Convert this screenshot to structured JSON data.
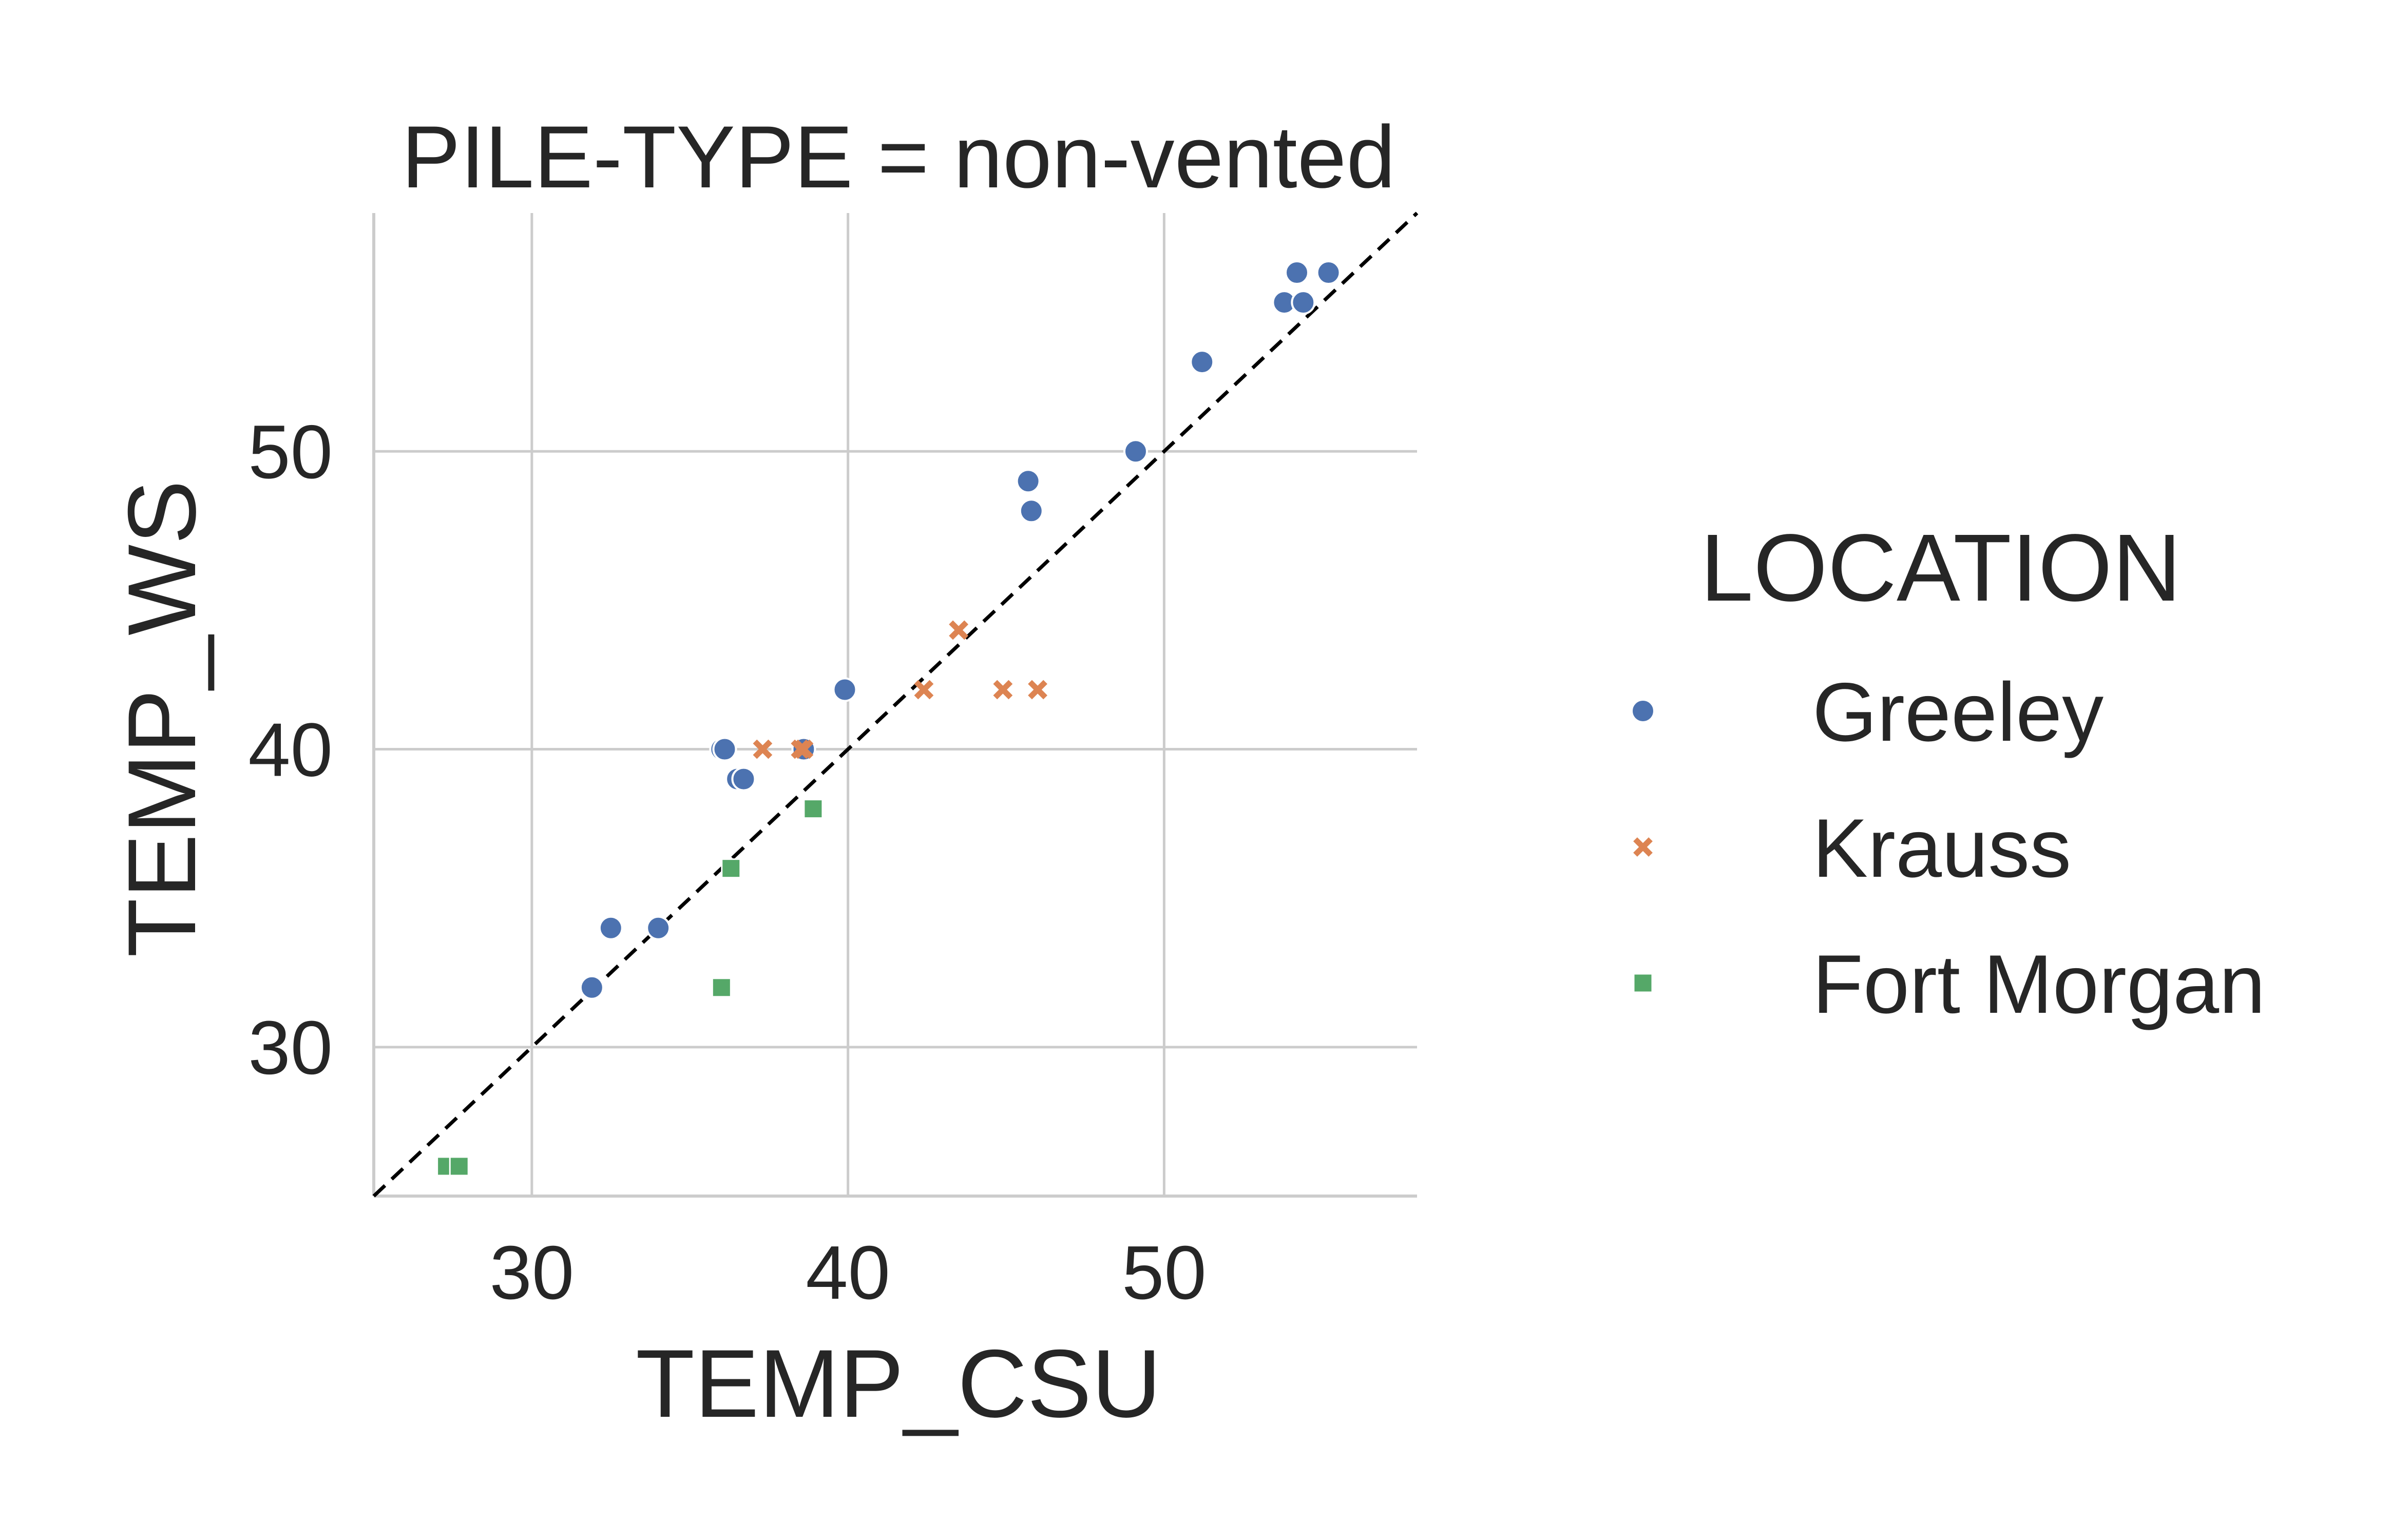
{
  "chart_data": {
    "type": "scatter",
    "title": "PILE-TYPE = non-vented",
    "xlabel": "TEMP_CSU",
    "ylabel": "TEMP_WS",
    "xlim": [
      25,
      58
    ],
    "ylim": [
      25,
      58
    ],
    "xticks": [
      30,
      40,
      50
    ],
    "yticks": [
      30,
      40,
      50
    ],
    "grid": true,
    "reference_line": {
      "style": "dashed",
      "color": "#000000",
      "slope": 1,
      "intercept": 0
    },
    "legend": {
      "title": "LOCATION",
      "placement": "right"
    },
    "series": [
      {
        "name": "Greeley",
        "marker": "circle",
        "color": "#4c72b0",
        "points": [
          [
            31.9,
            32
          ],
          [
            32.5,
            34
          ],
          [
            34.0,
            34
          ],
          [
            36.0,
            40
          ],
          [
            36.1,
            40
          ],
          [
            36.5,
            39
          ],
          [
            36.7,
            39
          ],
          [
            38.6,
            40
          ],
          [
            39.9,
            42
          ],
          [
            45.7,
            49
          ],
          [
            45.8,
            48
          ],
          [
            49.1,
            50
          ],
          [
            51.2,
            53
          ],
          [
            53.8,
            55
          ],
          [
            54.2,
            56
          ],
          [
            54.4,
            55
          ],
          [
            55.2,
            56
          ]
        ]
      },
      {
        "name": "Krauss",
        "marker": "x",
        "color": "#dd8452",
        "points": [
          [
            37.3,
            40
          ],
          [
            38.5,
            40
          ],
          [
            38.6,
            40
          ],
          [
            42.4,
            42
          ],
          [
            43.5,
            44
          ],
          [
            44.9,
            42
          ],
          [
            46.0,
            42
          ]
        ]
      },
      {
        "name": "Fort Morgan",
        "marker": "square",
        "color": "#55a868",
        "points": [
          [
            27.3,
            26
          ],
          [
            27.7,
            26
          ],
          [
            36.0,
            32
          ],
          [
            36.3,
            36
          ],
          [
            38.9,
            38
          ]
        ]
      }
    ]
  }
}
